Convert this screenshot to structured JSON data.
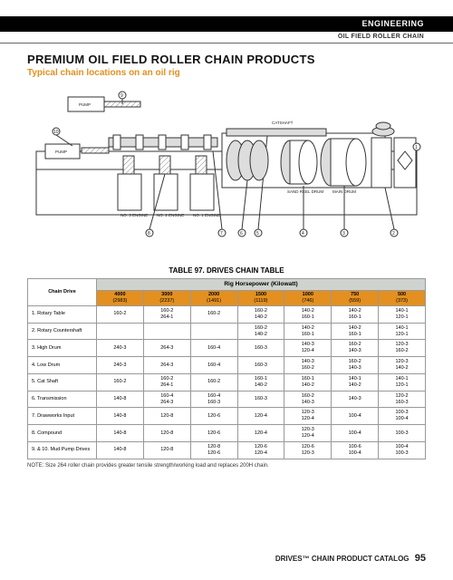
{
  "header": {
    "section": "ENGINEERING",
    "subsection": "OIL FIELD ROLLER CHAIN"
  },
  "title": "PREMIUM OIL FIELD ROLLER CHAIN PRODUCTS",
  "subtitle": "Typical chain locations on an oil rig",
  "diagram": {
    "labels": {
      "pump1": "PUMP",
      "pump2": "PUMP",
      "engine1": "NO. 1 ENGINE",
      "engine2": "NO. 2 ENGINE",
      "engine3": "NO. 3 ENGINE",
      "catshaft": "CATSHAFT",
      "sand_reel": "SAND REEL DRUM",
      "main_drum": "MAIN DRUM"
    },
    "callouts": [
      "1",
      "2",
      "3",
      "4",
      "5",
      "6",
      "7",
      "8",
      "9",
      "10"
    ]
  },
  "table": {
    "caption": "TABLE 97. DRIVES CHAIN TABLE",
    "group_header": "Rig Horsepower (Kilowatt)",
    "chain_drive_label": "Chain Drive",
    "hp_columns": [
      {
        "hp": "4000",
        "kw": "(2983)"
      },
      {
        "hp": "3000",
        "kw": "(2237)"
      },
      {
        "hp": "2000",
        "kw": "(1491)"
      },
      {
        "hp": "1500",
        "kw": "(1119)"
      },
      {
        "hp": "1000",
        "kw": "(746)"
      },
      {
        "hp": "750",
        "kw": "(559)"
      },
      {
        "hp": "500",
        "kw": "(373)"
      }
    ],
    "rows": [
      {
        "drive": "1. Rotary Table",
        "cells": [
          "160-2",
          "160-2\n264-1",
          "160-2",
          "160-2\n140-2",
          "140-2\n160-1",
          "140-2\n160-1",
          "140-1\n120-1"
        ]
      },
      {
        "drive": "2. Rotary Countershaft",
        "cells": [
          "",
          "",
          "",
          "160-2\n140-2",
          "140-2\n160-1",
          "140-2\n160-1",
          "140-1\n120-1"
        ]
      },
      {
        "drive": "3. High Drum",
        "cells": [
          "240-3",
          "264-3",
          "160-4",
          "160-3",
          "140-3\n120-4",
          "160-2\n140-3",
          "120-3\n160-2"
        ]
      },
      {
        "drive": "4. Low Drum",
        "cells": [
          "240-3",
          "264-3",
          "160-4",
          "160-3",
          "140-3\n160-2",
          "160-2\n140-3",
          "120-3\n140-2"
        ]
      },
      {
        "drive": "5. Cat Shaft",
        "cells": [
          "160-2",
          "160-2\n264-1",
          "160-2",
          "160-1\n140-2",
          "160-1\n140-2",
          "140-1\n140-2",
          "140-1\n120-1"
        ]
      },
      {
        "drive": "6. Transmission",
        "cells": [
          "140-8",
          "160-4\n264-3",
          "160-4\n160-3",
          "160-3",
          "160-2\n140-3",
          "140-3",
          "120-2\n160-3"
        ]
      },
      {
        "drive": "7. Drawworks Input",
        "cells": [
          "140-8",
          "120-8",
          "120-6",
          "120-4",
          "120-3\n120-4",
          "100-4",
          "100-3\n100-4"
        ]
      },
      {
        "drive": "8. Compound",
        "cells": [
          "140-8",
          "120-8",
          "120-6",
          "120-4",
          "120-3\n120-4",
          "100-4",
          "100-3"
        ]
      },
      {
        "drive": "9. & 10. Mud Pump Drives",
        "cells": [
          "140-8",
          "120-8",
          "120-8\n120-6",
          "120-6\n120-4",
          "120-6\n120-3",
          "100-6\n100-4",
          "100-4\n100-3"
        ]
      }
    ],
    "note": "NOTE: Size 264 roller chain provides greater tensile strength/working load and replaces 200H chain."
  },
  "footer": {
    "catalog": "DRIVES™ CHAIN PRODUCT CATALOG",
    "page": "95"
  },
  "colors": {
    "accent": "#e39020",
    "bg": "#ffffff",
    "header_bg": "#000000",
    "group_bg": "#cfd3cf"
  }
}
